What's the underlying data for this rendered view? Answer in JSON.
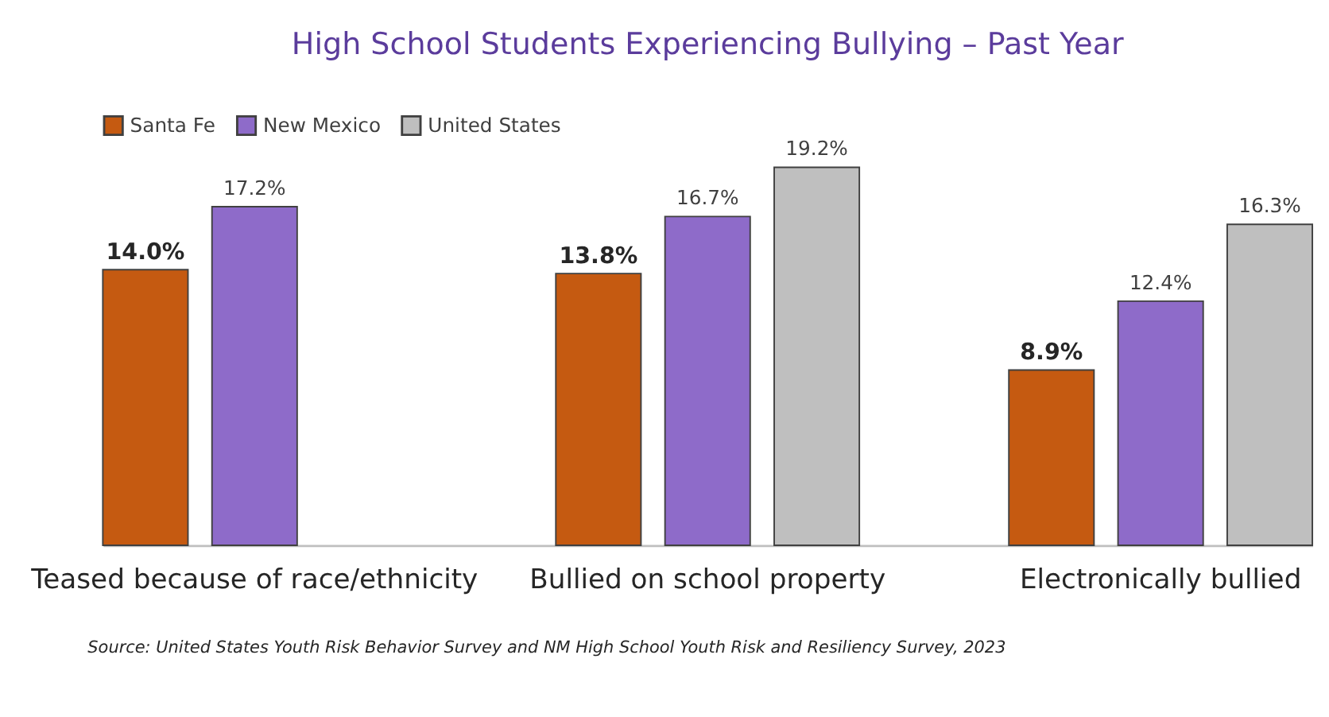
{
  "chart_data": {
    "type": "bar",
    "title": "High School Students Experiencing Bullying – Past Year",
    "categories": [
      "Teased because of race/ethnicity",
      "Bullied on school property",
      "Electronically bullied"
    ],
    "series": [
      {
        "name": "Santa Fe",
        "color": "#c55a11",
        "values": [
          14.0,
          13.8,
          8.9
        ],
        "value_labels": [
          "14.0%",
          "13.8%",
          "8.9%"
        ]
      },
      {
        "name": "New Mexico",
        "color": "#8e6bc9",
        "values": [
          17.2,
          16.7,
          12.4
        ],
        "value_labels": [
          "17.2%",
          "16.7%",
          "12.4%"
        ]
      },
      {
        "name": "United States",
        "color": "#bfbfbf",
        "values": [
          null,
          19.2,
          16.3
        ],
        "value_labels": [
          null,
          "19.2%",
          "16.3%"
        ]
      }
    ],
    "legend": "top",
    "grid": false,
    "annotations": [
      "Source: United States Youth Risk Behavior Survey and NM High School Youth Risk and Resiliency Survey, 2023"
    ]
  }
}
